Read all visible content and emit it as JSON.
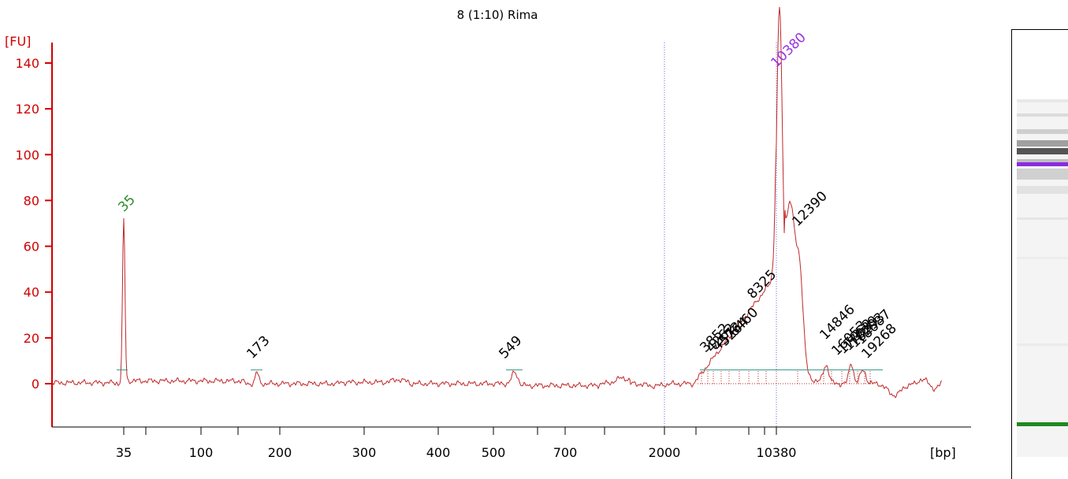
{
  "chart_data": {
    "type": "line",
    "title": "8 (1:10) Rima",
    "ylabel": "[FU]",
    "xlabel": "[bp]",
    "ylim": [
      -20,
      150
    ],
    "yticks": [
      0,
      20,
      40,
      60,
      80,
      100,
      120,
      140
    ],
    "x_axis_labels": [
      "35",
      "100",
      "200",
      "300",
      "400",
      "500",
      "700",
      "2000",
      "10380"
    ],
    "x_axis_label_positions_bp": [
      35,
      100,
      200,
      300,
      400,
      500,
      700,
      2000,
      10380
    ],
    "x_axis_tick_bp": [
      35,
      50,
      100,
      150,
      200,
      300,
      400,
      500,
      600,
      700,
      1000,
      2000,
      3000,
      5000,
      7000,
      10380
    ],
    "marker_peaks": [
      {
        "label": "35",
        "bp": 35,
        "fu": 72,
        "color": "#2e8b2e"
      },
      {
        "label": "10380",
        "bp": 10380,
        "fu": 135,
        "color": "#9b30e0"
      }
    ],
    "peaks": [
      {
        "label": "173",
        "bp": 173,
        "fu": 6
      },
      {
        "label": "549",
        "bp": 549,
        "fu": 6
      },
      {
        "label": "3852",
        "bp": 3852,
        "fu": 14
      },
      {
        "label": "4262",
        "bp": 4262,
        "fu": 15
      },
      {
        "label": "4573",
        "bp": 4573,
        "fu": 18
      },
      {
        "label": "5264",
        "bp": 5264,
        "fu": 20
      },
      {
        "label": "6460",
        "bp": 6460,
        "fu": 27
      },
      {
        "label": "8325",
        "bp": 8325,
        "fu": 36
      },
      {
        "label": "12390",
        "bp": 12390,
        "fu": 64
      },
      {
        "label": "14846",
        "bp": 14846,
        "fu": 16
      },
      {
        "label": "16053",
        "bp": 16053,
        "fu": 12
      },
      {
        "label": "17052",
        "bp": 17052,
        "fu": 12
      },
      {
        "label": "17839",
        "bp": 17839,
        "fu": 12
      },
      {
        "label": "18293",
        "bp": 18293,
        "fu": 12
      },
      {
        "label": "18687",
        "bp": 18687,
        "fu": 10
      },
      {
        "label": "19268",
        "bp": 19268,
        "fu": 9
      }
    ],
    "dotted_lines_bp": [
      2000,
      10380
    ],
    "trace_color": "#c0282a",
    "axis_color": "#d00000"
  },
  "gel": {
    "upper_marker_color": "#8a2be2",
    "lower_marker_color": "#1f8a1f"
  }
}
